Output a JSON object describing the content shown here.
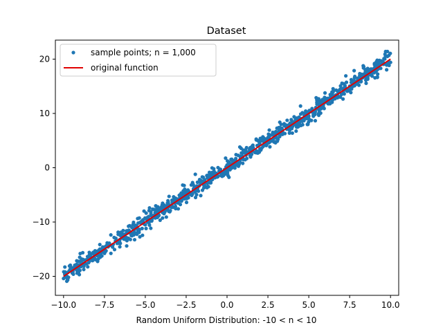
{
  "chart_data": {
    "type": "scatter",
    "title": "Dataset",
    "xlabel": "Random Uniform Distribution: -10 < n < 10",
    "ylabel": "",
    "xlim": [
      -10.5,
      10.5
    ],
    "ylim": [
      -23.5,
      23.5
    ],
    "xticks": [
      -10.0,
      -7.5,
      -5.0,
      -2.5,
      0.0,
      2.5,
      5.0,
      7.5,
      10.0
    ],
    "xtick_labels": [
      "−10.0",
      "−7.5",
      "−5.0",
      "−2.5",
      "0.0",
      "2.5",
      "5.0",
      "7.5",
      "10.0"
    ],
    "yticks": [
      -20,
      -10,
      0,
      10,
      20
    ],
    "ytick_labels": [
      "−20",
      "−10",
      "0",
      "10",
      "20"
    ],
    "grid": false,
    "legend_position": "top-left",
    "series": [
      {
        "name": "sample points; n = 1,000",
        "kind": "scatter",
        "color": "#1f77b4",
        "n": 1000,
        "x_range": [
          -10,
          10
        ],
        "slope": 2,
        "intercept": 0,
        "noise": 0.8,
        "points": [
          [
            -10,
            -20.4
          ],
          [
            -9.9,
            -19.2
          ],
          [
            -9.8,
            -20.9
          ],
          [
            -9.6,
            -18.7
          ],
          [
            -9.4,
            -19.6
          ],
          [
            -9.2,
            -17.8
          ],
          [
            -9.0,
            -18.9
          ],
          [
            -8.8,
            -16.9
          ],
          [
            -8.6,
            -17.7
          ],
          [
            -8.4,
            -16.2
          ],
          [
            -8.2,
            -16.9
          ],
          [
            -8.0,
            -15.4
          ],
          [
            -7.8,
            -16.1
          ],
          [
            -7.6,
            -14.6
          ],
          [
            -7.4,
            -15.3
          ],
          [
            -7.2,
            -13.9
          ],
          [
            -7.0,
            -14.6
          ],
          [
            -6.8,
            -13.0
          ],
          [
            -6.6,
            -13.7
          ],
          [
            -6.4,
            -12.2
          ],
          [
            -6.2,
            -12.9
          ],
          [
            -6.0,
            -11.5
          ],
          [
            -5.8,
            -12.1
          ],
          [
            -5.6,
            -10.6
          ],
          [
            -5.4,
            -11.3
          ],
          [
            -5.2,
            -9.9
          ],
          [
            -5.0,
            -10.5
          ],
          [
            -4.8,
            -9.0
          ],
          [
            -4.6,
            -9.7
          ],
          [
            -4.4,
            -8.3
          ],
          [
            -4.2,
            -8.9
          ],
          [
            -4.0,
            -7.4
          ],
          [
            -3.8,
            -8.1
          ],
          [
            -3.6,
            -6.7
          ],
          [
            -3.4,
            -7.3
          ],
          [
            -3.2,
            -5.9
          ],
          [
            -3.0,
            -6.5
          ],
          [
            -2.8,
            -5.1
          ],
          [
            -2.6,
            -5.7
          ],
          [
            -2.4,
            -4.3
          ],
          [
            -2.2,
            -4.9
          ],
          [
            -2.0,
            -3.5
          ],
          [
            -1.8,
            -4.1
          ],
          [
            -1.6,
            -2.7
          ],
          [
            -1.4,
            -3.3
          ],
          [
            -1.2,
            -1.9
          ],
          [
            -1.0,
            -2.5
          ],
          [
            -0.8,
            -1.1
          ],
          [
            -0.6,
            -1.7
          ],
          [
            -0.4,
            -0.3
          ],
          [
            -0.2,
            -0.9
          ],
          [
            0.0,
            0.5
          ],
          [
            0.2,
            -0.1
          ],
          [
            0.4,
            1.3
          ],
          [
            0.6,
            0.7
          ],
          [
            0.8,
            2.1
          ],
          [
            1.0,
            1.5
          ],
          [
            1.2,
            2.9
          ],
          [
            1.4,
            2.3
          ],
          [
            1.6,
            3.7
          ],
          [
            1.8,
            3.1
          ],
          [
            2.0,
            4.5
          ],
          [
            2.2,
            3.9
          ],
          [
            2.4,
            5.3
          ],
          [
            2.6,
            4.7
          ],
          [
            2.8,
            6.1
          ],
          [
            3.0,
            5.5
          ],
          [
            3.2,
            6.9
          ],
          [
            3.4,
            6.3
          ],
          [
            3.6,
            7.7
          ],
          [
            3.8,
            7.1
          ],
          [
            4.0,
            8.5
          ],
          [
            4.2,
            7.9
          ],
          [
            4.4,
            9.3
          ],
          [
            4.6,
            8.7
          ],
          [
            4.8,
            10.1
          ],
          [
            5.0,
            9.5
          ],
          [
            5.2,
            10.9
          ],
          [
            5.4,
            10.3
          ],
          [
            5.6,
            11.7
          ],
          [
            5.8,
            11.1
          ],
          [
            6.0,
            12.5
          ],
          [
            6.2,
            11.9
          ],
          [
            6.4,
            13.3
          ],
          [
            6.6,
            12.7
          ],
          [
            6.8,
            14.1
          ],
          [
            7.0,
            13.5
          ],
          [
            7.2,
            14.9
          ],
          [
            7.4,
            14.3
          ],
          [
            7.6,
            15.7
          ],
          [
            7.8,
            15.1
          ],
          [
            8.0,
            16.5
          ],
          [
            8.2,
            15.9
          ],
          [
            8.4,
            17.3
          ],
          [
            8.6,
            16.7
          ],
          [
            8.8,
            18.1
          ],
          [
            9.0,
            17.5
          ],
          [
            9.2,
            18.9
          ],
          [
            9.4,
            18.3
          ],
          [
            9.6,
            20.1
          ],
          [
            9.7,
            21.4
          ],
          [
            9.8,
            19.1
          ],
          [
            9.9,
            20.7
          ],
          [
            10.0,
            19.4
          ]
        ]
      },
      {
        "name": "original function",
        "kind": "line",
        "color": "#e00000",
        "x": [
          -10,
          10
        ],
        "y": [
          -20,
          20
        ]
      }
    ]
  }
}
